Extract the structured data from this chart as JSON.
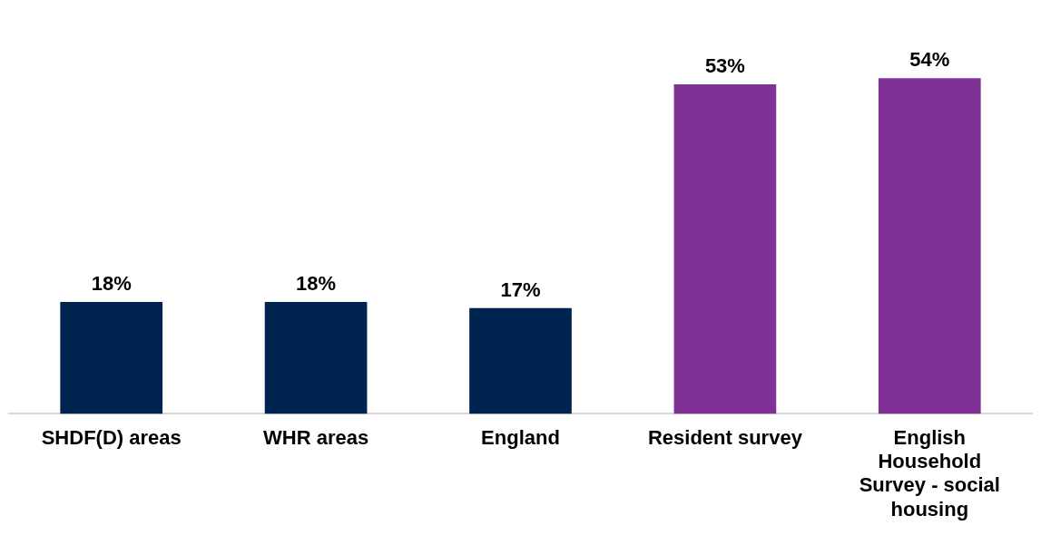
{
  "chart_data": {
    "type": "bar",
    "categories": [
      "SHDF(D) areas",
      "WHR areas",
      "England",
      "Resident survey",
      "English Household Survey - social housing"
    ],
    "values": [
      18,
      18,
      17,
      53,
      54
    ],
    "colors": [
      "#002452",
      "#002452",
      "#002452",
      "#7f3196",
      "#7f3196"
    ],
    "value_labels": [
      "18%",
      "18%",
      "17%",
      "53%",
      "54%"
    ],
    "grid": false,
    "legend": false
  }
}
